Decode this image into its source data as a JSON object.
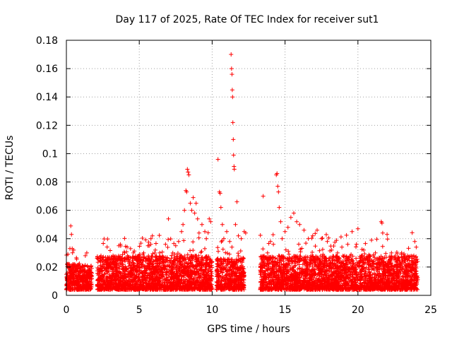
{
  "chart_data": {
    "type": "scatter",
    "title": "Day 117 of 2025, Rate Of TEC Index for receiver sut1",
    "xlabel": "GPS time / hours",
    "ylabel": "ROTI / TECUs",
    "xlim": [
      0,
      25
    ],
    "ylim": [
      0,
      0.18
    ],
    "xticks": [
      0,
      5,
      10,
      15,
      20,
      25
    ],
    "yticks": [
      0,
      0.02,
      0.04,
      0.06,
      0.08,
      0.1,
      0.12,
      0.14,
      0.16,
      0.18
    ],
    "xtick_labels": [
      "0",
      "5",
      "10",
      "15",
      "20",
      "25"
    ],
    "ytick_labels": [
      "0",
      "0.02",
      "0.04",
      "0.06",
      "0.08",
      "0.1",
      "0.12",
      "0.14",
      "0.16",
      "0.18"
    ],
    "grid": true,
    "marker": "+",
    "marker_color": "#ff0000",
    "series": [
      {
        "name": "ROTI",
        "points": [
          [
            0.3,
            0.049
          ],
          [
            0.35,
            0.043
          ],
          [
            0.4,
            0.033
          ],
          [
            0.5,
            0.032
          ],
          [
            0.2,
            0.022
          ],
          [
            0.1,
            0.012
          ],
          [
            0.6,
            0.018
          ],
          [
            0.8,
            0.015
          ],
          [
            1.0,
            0.019
          ],
          [
            1.2,
            0.014
          ],
          [
            1.3,
            0.028
          ],
          [
            1.4,
            0.03
          ],
          [
            1.6,
            0.01
          ],
          [
            1.7,
            0.016
          ],
          [
            2.3,
            0.018
          ],
          [
            2.6,
            0.022
          ],
          [
            2.8,
            0.025
          ],
          [
            3.0,
            0.02
          ],
          [
            3.2,
            0.028
          ],
          [
            3.4,
            0.022
          ],
          [
            3.6,
            0.035
          ],
          [
            3.7,
            0.036
          ],
          [
            4.0,
            0.03
          ],
          [
            4.2,
            0.028
          ],
          [
            4.4,
            0.033
          ],
          [
            4.6,
            0.03
          ],
          [
            4.8,
            0.025
          ],
          [
            5.0,
            0.028
          ],
          [
            5.3,
            0.03
          ],
          [
            5.6,
            0.035
          ],
          [
            5.8,
            0.04
          ],
          [
            5.9,
            0.042
          ],
          [
            6.1,
            0.032
          ],
          [
            6.4,
            0.03
          ],
          [
            6.8,
            0.036
          ],
          [
            7.0,
            0.054
          ],
          [
            7.3,
            0.03
          ],
          [
            7.5,
            0.035
          ],
          [
            7.7,
            0.038
          ],
          [
            7.9,
            0.045
          ],
          [
            8.0,
            0.05
          ],
          [
            8.1,
            0.06
          ],
          [
            8.2,
            0.074
          ],
          [
            8.25,
            0.073
          ],
          [
            8.3,
            0.089
          ],
          [
            8.35,
            0.087
          ],
          [
            8.4,
            0.085
          ],
          [
            8.5,
            0.065
          ],
          [
            8.6,
            0.06
          ],
          [
            8.7,
            0.069
          ],
          [
            8.8,
            0.058
          ],
          [
            8.9,
            0.065
          ],
          [
            9.0,
            0.054
          ],
          [
            9.1,
            0.044
          ],
          [
            9.3,
            0.05
          ],
          [
            9.5,
            0.045
          ],
          [
            9.6,
            0.04
          ],
          [
            9.8,
            0.054
          ],
          [
            9.9,
            0.052
          ],
          [
            10.4,
            0.096
          ],
          [
            10.5,
            0.073
          ],
          [
            10.55,
            0.072
          ],
          [
            10.6,
            0.062
          ],
          [
            10.7,
            0.05
          ],
          [
            10.8,
            0.04
          ],
          [
            11.0,
            0.045
          ],
          [
            11.2,
            0.038
          ],
          [
            11.3,
            0.17
          ],
          [
            11.33,
            0.16
          ],
          [
            11.36,
            0.156
          ],
          [
            11.38,
            0.145
          ],
          [
            11.4,
            0.14
          ],
          [
            11.42,
            0.122
          ],
          [
            11.45,
            0.11
          ],
          [
            11.47,
            0.099
          ],
          [
            11.5,
            0.091
          ],
          [
            11.52,
            0.089
          ],
          [
            11.6,
            0.05
          ],
          [
            11.7,
            0.066
          ],
          [
            11.8,
            0.042
          ],
          [
            12.0,
            0.04
          ],
          [
            12.2,
            0.045
          ],
          [
            12.3,
            0.044
          ],
          [
            13.5,
            0.07
          ],
          [
            13.8,
            0.03
          ],
          [
            14.0,
            0.038
          ],
          [
            14.2,
            0.036
          ],
          [
            14.4,
            0.085
          ],
          [
            14.45,
            0.086
          ],
          [
            14.5,
            0.077
          ],
          [
            14.55,
            0.073
          ],
          [
            14.6,
            0.062
          ],
          [
            14.7,
            0.052
          ],
          [
            14.8,
            0.04
          ],
          [
            15.0,
            0.045
          ],
          [
            15.2,
            0.048
          ],
          [
            15.4,
            0.055
          ],
          [
            15.6,
            0.058
          ],
          [
            15.8,
            0.052
          ],
          [
            16.0,
            0.05
          ],
          [
            16.3,
            0.046
          ],
          [
            16.6,
            0.04
          ],
          [
            16.9,
            0.042
          ],
          [
            17.2,
            0.046
          ],
          [
            17.5,
            0.04
          ],
          [
            17.9,
            0.038
          ],
          [
            18.2,
            0.032
          ],
          [
            18.6,
            0.03
          ],
          [
            18.9,
            0.034
          ],
          [
            19.3,
            0.036
          ],
          [
            19.6,
            0.045
          ],
          [
            19.9,
            0.036
          ],
          [
            20.0,
            0.047
          ],
          [
            20.4,
            0.032
          ],
          [
            20.8,
            0.028
          ],
          [
            21.2,
            0.03
          ],
          [
            21.6,
            0.052
          ],
          [
            21.65,
            0.051
          ],
          [
            21.7,
            0.044
          ],
          [
            22.0,
            0.043
          ],
          [
            22.3,
            0.03
          ],
          [
            22.6,
            0.025
          ],
          [
            23.0,
            0.03
          ],
          [
            23.4,
            0.028
          ],
          [
            23.7,
            0.024
          ],
          [
            23.9,
            0.038
          ],
          [
            24.0,
            0.034
          ]
        ]
      }
    ]
  }
}
